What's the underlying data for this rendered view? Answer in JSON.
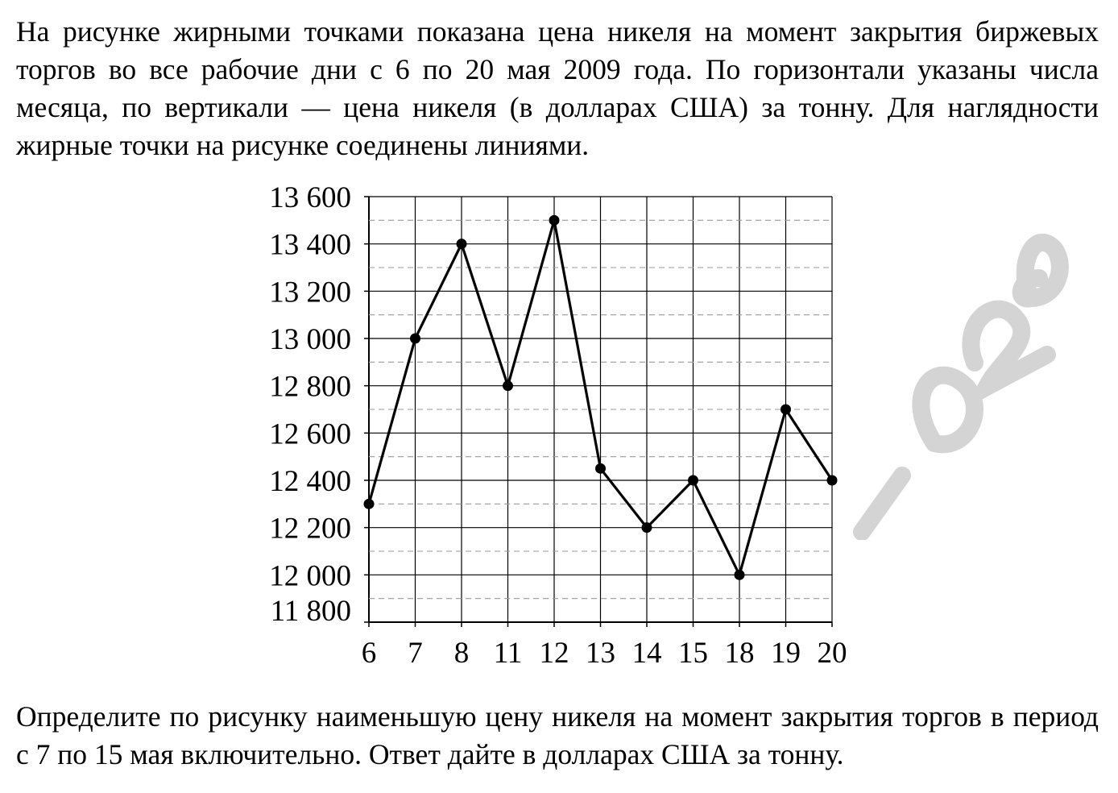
{
  "problem": {
    "intro": "На рисунке жирными точками показана цена никеля на момент закрытия биржевых торгов во все рабочие дни с 6 по 20 мая 2009 года. По горизонтали указаны числа месяца, по вертикали — цена никеля (в долларах США) за тонну. Для наглядности жирные точки на рисунке соединены линиями.",
    "question": "Определите по рисунку наименьшую цену никеля на момент закрытия торгов в период с 7 по 15 мая включительно. Ответ дайте в долларах США за тонну."
  },
  "chart_data": {
    "type": "line",
    "title": "",
    "xlabel": "",
    "ylabel": "",
    "categories": [
      "6",
      "7",
      "8",
      "11",
      "12",
      "13",
      "14",
      "15",
      "18",
      "19",
      "20"
    ],
    "series": [
      {
        "values": [
          12300,
          13000,
          13400,
          12800,
          13500,
          12450,
          12200,
          12400,
          12000,
          12700,
          12400
        ]
      }
    ],
    "ylim": [
      11800,
      13600
    ],
    "yticks": [
      11800,
      12000,
      12200,
      12400,
      12600,
      12800,
      13000,
      13200,
      13400,
      13600
    ],
    "ytick_labels": [
      "11 800",
      "12 000",
      "12 200",
      "12 400",
      "12 600",
      "12 800",
      "13 000",
      "13 200",
      "13 400",
      "13 600"
    ],
    "minor_grid_dashed": true,
    "grid": true,
    "line_color": "#000000",
    "grid_color": "#000000",
    "minor_grid_color": "#9a9a9a"
  },
  "watermark": {
    "color": "#d4d4d4"
  }
}
